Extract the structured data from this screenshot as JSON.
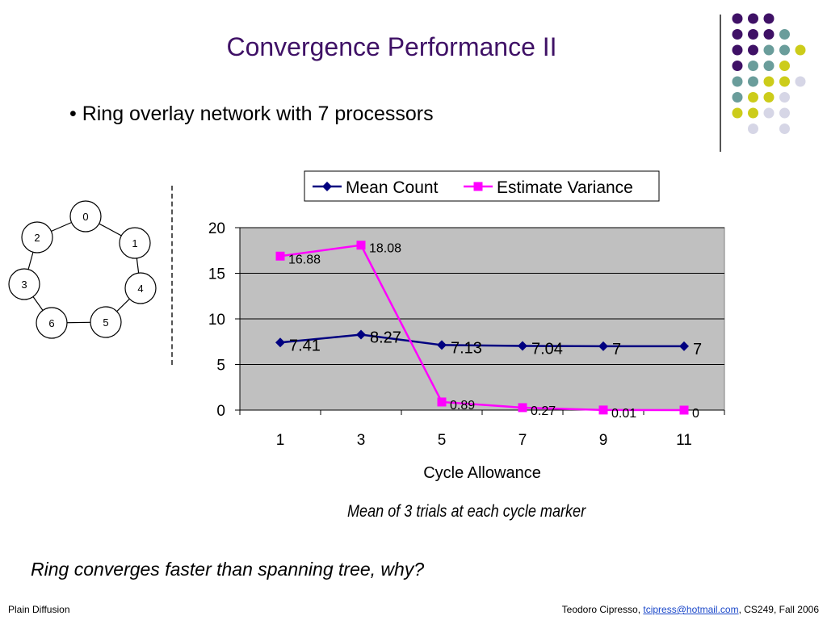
{
  "slide": {
    "title": "Convergence Performance II",
    "bullet": "• Ring overlay network with 7 processors",
    "caption": "Mean of 3 trials at each cycle marker",
    "question": "Ring converges faster than spanning tree, why?",
    "footer_left": "Plain Diffusion",
    "footer_author": "Teodoro Cipresso, ",
    "footer_email": "tcipress@hotmail.com",
    "footer_course": ", CS249, Fall 2006"
  },
  "ring_nodes": [
    {
      "label": "0"
    },
    {
      "label": "1"
    },
    {
      "label": "4"
    },
    {
      "label": "5"
    },
    {
      "label": "6"
    },
    {
      "label": "3"
    },
    {
      "label": "2"
    }
  ],
  "colors": {
    "title": "#3f1166",
    "mean_series": "#000080",
    "variance_series": "#ff00ff",
    "plot_bg": "#c0c0c0",
    "dot_purple": "#3f1166",
    "dot_teal": "#6a9d9b",
    "dot_yellow": "#cccc1a",
    "dot_lavender": "#d6d6e6"
  },
  "chart_data": {
    "type": "line",
    "x": [
      1,
      3,
      5,
      7,
      9,
      11
    ],
    "xlabel": "Cycle Allowance",
    "ylabel": "",
    "ylim": [
      0,
      20
    ],
    "yticks": [
      0,
      5,
      10,
      15,
      20
    ],
    "grid": true,
    "legend": "top",
    "series": [
      {
        "name": "Mean Count",
        "values": [
          7.41,
          8.27,
          7.13,
          7.04,
          7,
          7
        ],
        "labels": [
          "7.41",
          "8.27",
          "7.13",
          "7.04",
          "7",
          "7"
        ]
      },
      {
        "name": "Estimate Variance",
        "values": [
          16.88,
          18.08,
          0.89,
          0.27,
          0.01,
          0
        ],
        "labels": [
          "16.88",
          "18.08",
          "0.89",
          "0.27",
          "0.01",
          "0"
        ]
      }
    ]
  }
}
